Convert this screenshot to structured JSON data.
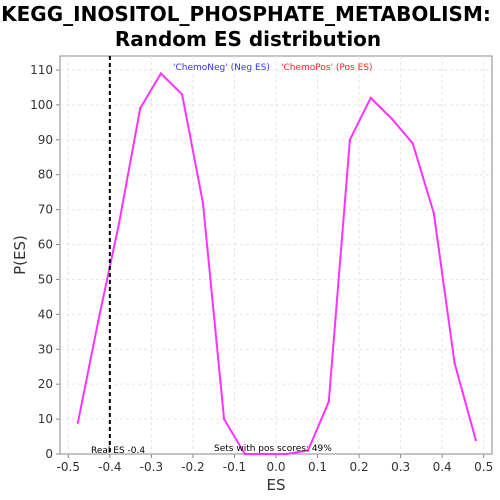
{
  "chart_data": {
    "type": "line",
    "title_line1": "KEGG_INOSITOL_PHOSPHATE_METABOLISM:",
    "title_line2": "Random ES distribution",
    "xlabel": "ES",
    "ylabel": "P(ES)",
    "xlim": [
      -0.52,
      0.52
    ],
    "ylim": [
      0,
      114
    ],
    "x_ticks": [
      "-0.5",
      "-0.4",
      "-0.3",
      "-0.2",
      "-0.1",
      "0.0",
      "0.1",
      "0.2",
      "0.3",
      "0.4",
      "0.5"
    ],
    "x_tick_values": [
      -0.5,
      -0.4,
      -0.3,
      -0.2,
      -0.1,
      0.0,
      0.1,
      0.2,
      0.3,
      0.4,
      0.5
    ],
    "y_ticks": [
      "0",
      "10",
      "20",
      "30",
      "40",
      "50",
      "60",
      "70",
      "80",
      "90",
      "100",
      "110"
    ],
    "y_tick_values": [
      0,
      10,
      20,
      30,
      40,
      50,
      60,
      70,
      80,
      90,
      100,
      110
    ],
    "grid": true,
    "series": [
      {
        "color": "#ff33ff",
        "x": [
          -0.477,
          -0.428,
          -0.378,
          -0.327,
          -0.277,
          -0.226,
          -0.176,
          -0.125,
          -0.075,
          -0.024,
          0.026,
          0.077,
          0.127,
          0.178,
          0.228,
          0.279,
          0.329,
          0.38,
          0.43,
          0.481
        ],
        "y": [
          9,
          38,
          66,
          99,
          109,
          103,
          72,
          10,
          0,
          0,
          0,
          1,
          15,
          90,
          102,
          96,
          89,
          69,
          26,
          4
        ]
      }
    ],
    "real_es": -0.4,
    "real_es_label": "Real ES -0.4",
    "legend_neg": "'ChemoNeg' (Neg ES)",
    "legend_pos": "'ChemoPos' (Pos ES)",
    "legend_neg_color": "#3333ff",
    "legend_pos_color": "#ff2222",
    "pos_scores_label": "Sets with pos scores: 49%"
  }
}
